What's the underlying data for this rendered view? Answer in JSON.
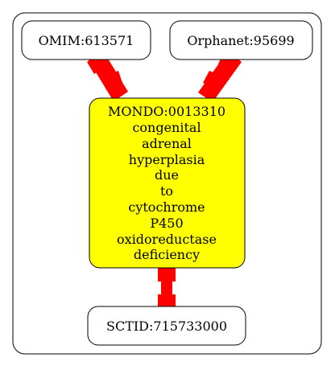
{
  "diagram": {
    "nodes": {
      "omim": {
        "label": "OMIM:613571",
        "fill": "#ffffff"
      },
      "orphanet": {
        "label": "Orphanet:95699",
        "fill": "#ffffff"
      },
      "mondo": {
        "lines": [
          "MONDO:0013310",
          "congenital",
          "adrenal",
          "hyperplasia",
          "due",
          "to",
          "cytochrome",
          "P450",
          "oxidoreductase",
          "deficiency"
        ],
        "fill": "#ffff00"
      },
      "sctid": {
        "label": "SCTID:715733000",
        "fill": "#ffffff"
      }
    },
    "edges": [
      {
        "from": "omim",
        "to": "mondo",
        "color": "#ff0000"
      },
      {
        "from": "orphanet",
        "to": "mondo",
        "color": "#ff0000"
      },
      {
        "from": "mondo",
        "to": "sctid",
        "color": "#ff0000"
      }
    ]
  }
}
